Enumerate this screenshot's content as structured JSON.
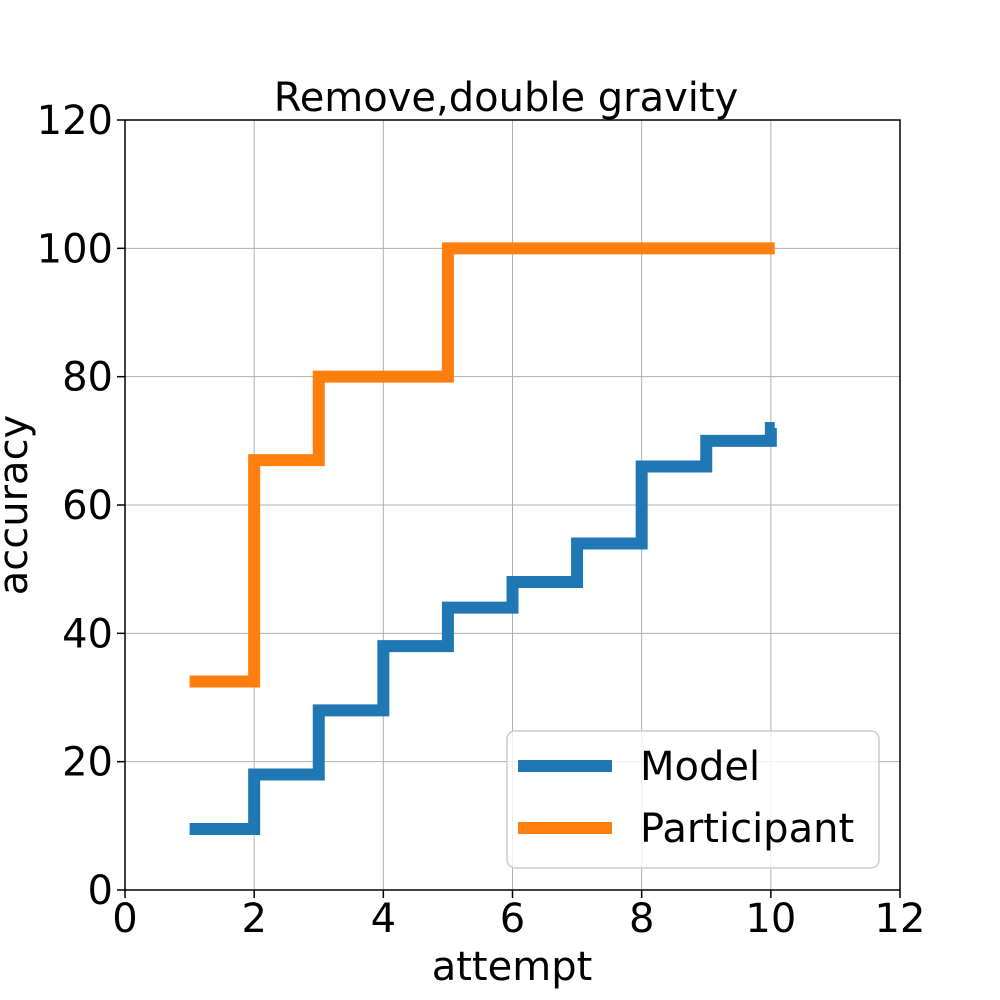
{
  "chart_data": {
    "type": "line",
    "step": "post",
    "title": "Remove,double gravity",
    "xlabel": "attempt",
    "ylabel": "accuracy",
    "xlim": [
      0,
      12
    ],
    "ylim": [
      0,
      120
    ],
    "xticks": [
      0,
      2,
      4,
      6,
      8,
      10,
      12
    ],
    "yticks": [
      0,
      20,
      40,
      60,
      80,
      100,
      120
    ],
    "grid": true,
    "legend_position": "lower right",
    "series": [
      {
        "name": "Model",
        "color": "#1f77b4",
        "x": [
          1,
          2,
          3,
          4,
          5,
          6,
          7,
          8,
          9,
          10
        ],
        "y": [
          9.5,
          18,
          28,
          38,
          44,
          48,
          54,
          66,
          70,
          72
        ]
      },
      {
        "name": "Participant",
        "color": "#ff7f0e",
        "x": [
          1,
          2,
          3,
          4,
          5,
          6,
          7,
          8,
          9,
          10
        ],
        "y": [
          32.5,
          67,
          80,
          80,
          100,
          100,
          100,
          100,
          100,
          100
        ]
      }
    ]
  }
}
